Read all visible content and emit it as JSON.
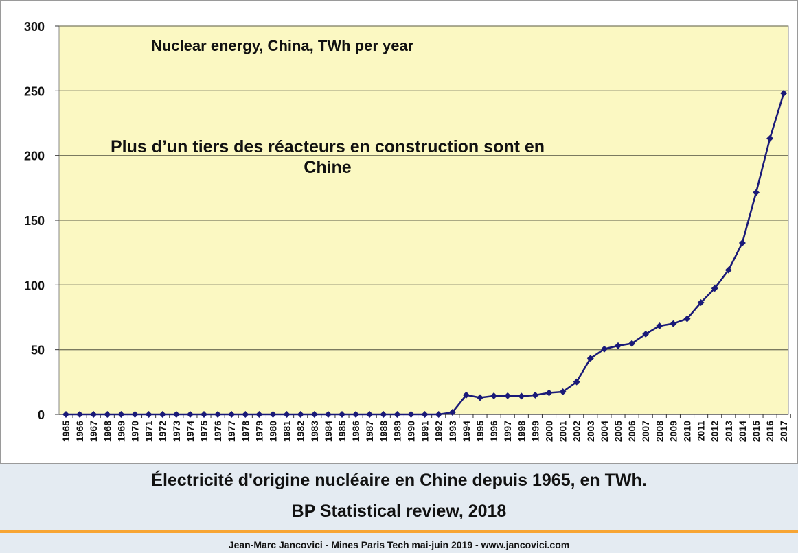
{
  "chart_data": {
    "type": "line",
    "title": "Nuclear energy, China, TWh per year",
    "annotation": "Plus d’un tiers des réacteurs en construction sont en Chine",
    "annotation_lines": [
      "Plus d’un tiers des réacteurs en construction sont en",
      "Chine"
    ],
    "xlabel": "",
    "ylabel": "",
    "ylim": [
      0,
      300
    ],
    "yticks": [
      "0",
      "50",
      "100",
      "150",
      "200",
      "250",
      "300"
    ],
    "grid": true,
    "plot_background": "#fbf8c2",
    "line_color": "#1a1a78",
    "categories": [
      "1965",
      "1966",
      "1967",
      "1968",
      "1969",
      "1970",
      "1971",
      "1972",
      "1973",
      "1974",
      "1975",
      "1976",
      "1977",
      "1978",
      "1979",
      "1980",
      "1981",
      "1982",
      "1983",
      "1984",
      "1985",
      "1986",
      "1987",
      "1988",
      "1989",
      "1990",
      "1991",
      "1992",
      "1993",
      "1994",
      "1995",
      "1996",
      "1997",
      "1998",
      "1999",
      "2000",
      "2001",
      "2002",
      "2003",
      "2004",
      "2005",
      "2006",
      "2007",
      "2008",
      "2009",
      "2010",
      "2011",
      "2012",
      "2013",
      "2014",
      "2015",
      "2016",
      "2017"
    ],
    "tick_labels": [
      "1965",
      "1966",
      "1967",
      "1968",
      "1969",
      "1970",
      "1971",
      "1972",
      "1973",
      "1974",
      "1975",
      "1976",
      "1977",
      "1978",
      "1979",
      "1980",
      "1981",
      "1982",
      "1983",
      "1984",
      "1985",
      "1986",
      "1987",
      "1988",
      "1989",
      "1990",
      "1991",
      "1992",
      "1993",
      "1994",
      "1995",
      "1996",
      "1997",
      "1998",
      "1999",
      "2000",
      "2001",
      "2002",
      "2003",
      "2004",
      "2005",
      "2006",
      "2007",
      "2008",
      "2009",
      "2010",
      "2011",
      "2012",
      "2013",
      "2014",
      "2015",
      "2016",
      "2017"
    ],
    "values": [
      0,
      0,
      0,
      0,
      0,
      0,
      0,
      0,
      0,
      0,
      0,
      0,
      0,
      0,
      0,
      0,
      0,
      0,
      0,
      0,
      0,
      0,
      0,
      0,
      0,
      0,
      0,
      0,
      1.6,
      15,
      13,
      14.3,
      14.4,
      14.1,
      14.9,
      16.7,
      17.5,
      25.1,
      43.3,
      50.5,
      53.1,
      54.8,
      62.1,
      68.4,
      70.1,
      73.9,
      86.4,
      97.4,
      111.5,
      132.5,
      171.4,
      213.2,
      248.1
    ]
  },
  "caption": {
    "line1": "Électricité d'origine nucléaire en Chine depuis 1965, en TWh.",
    "line2": "BP Statistical review, 2018"
  },
  "footer": {
    "text": "Jean-Marc Jancovici - Mines Paris Tech mai-juin 2019 - www.jancovici.com"
  },
  "colors": {
    "accent_rule": "#f7a534",
    "caption_background": "#e4ebf2"
  }
}
